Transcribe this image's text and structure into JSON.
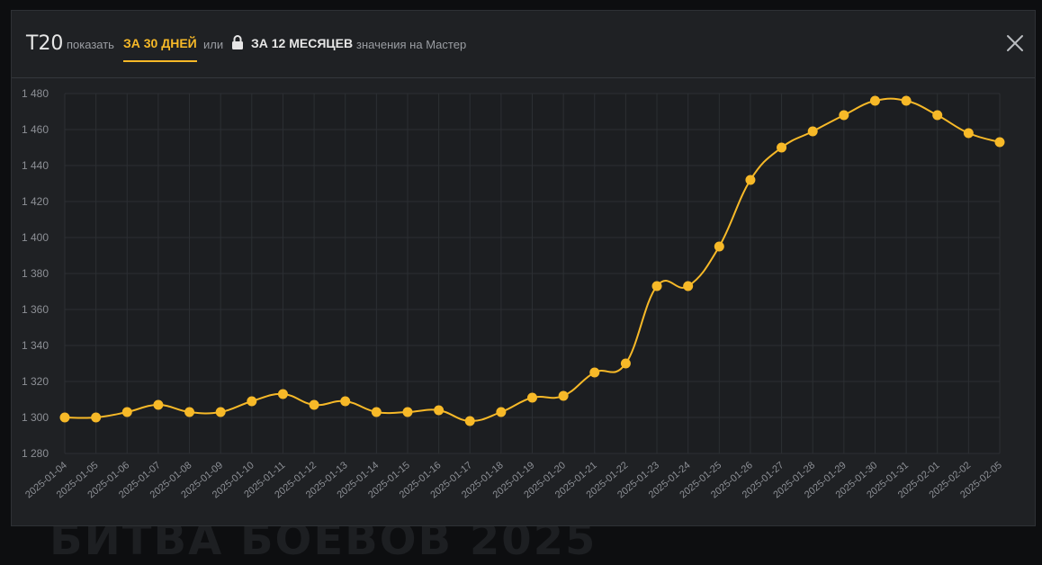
{
  "header": {
    "title": "T20",
    "show_label": "показать",
    "tab_30_days": "ЗА 30 ДНЕЙ",
    "or_label": "или",
    "tab_12_months": "ЗА 12 МЕСЯЦЕВ",
    "note": "значения на Мастер"
  },
  "backdrop_text": "БИТВА БОЕВОВ 2025",
  "colors": {
    "accent": "#f7b928",
    "line": "#f7b928",
    "grid": "#2c2f33",
    "plot_bg": "#1c1e21",
    "tick_text": "#8d9096"
  },
  "chart_data": {
    "type": "line",
    "title": "",
    "xlabel": "",
    "ylabel": "",
    "ylim": [
      1280,
      1480
    ],
    "yticks": [
      1280,
      1300,
      1320,
      1340,
      1360,
      1380,
      1400,
      1420,
      1440,
      1460,
      1480
    ],
    "ytick_labels": [
      "1 280",
      "1 300",
      "1 320",
      "1 340",
      "1 360",
      "1 380",
      "1 400",
      "1 420",
      "1 440",
      "1 460",
      "1 480"
    ],
    "grid": true,
    "legend": "none",
    "categories": [
      "2025-01-04",
      "2025-01-05",
      "2025-01-06",
      "2025-01-07",
      "2025-01-08",
      "2025-01-09",
      "2025-01-10",
      "2025-01-11",
      "2025-01-12",
      "2025-01-13",
      "2025-01-14",
      "2025-01-15",
      "2025-01-16",
      "2025-01-17",
      "2025-01-18",
      "2025-01-19",
      "2025-01-20",
      "2025-01-21",
      "2025-01-22",
      "2025-01-23",
      "2025-01-24",
      "2025-01-25",
      "2025-01-26",
      "2025-01-27",
      "2025-01-28",
      "2025-01-29",
      "2025-01-30",
      "2025-01-31",
      "2025-02-01",
      "2025-02-02",
      "2025-02-05"
    ],
    "series": [
      {
        "values": [
          1300,
          1300,
          1303,
          1307,
          1303,
          1303,
          1309,
          1313,
          1307,
          1309,
          1303,
          1303,
          1304,
          1298,
          1303,
          1311,
          1312,
          1325,
          1330,
          1373,
          1373,
          1395,
          1432,
          1450,
          1459,
          1468,
          1476,
          1476,
          1468,
          1458,
          1453
        ]
      }
    ]
  }
}
